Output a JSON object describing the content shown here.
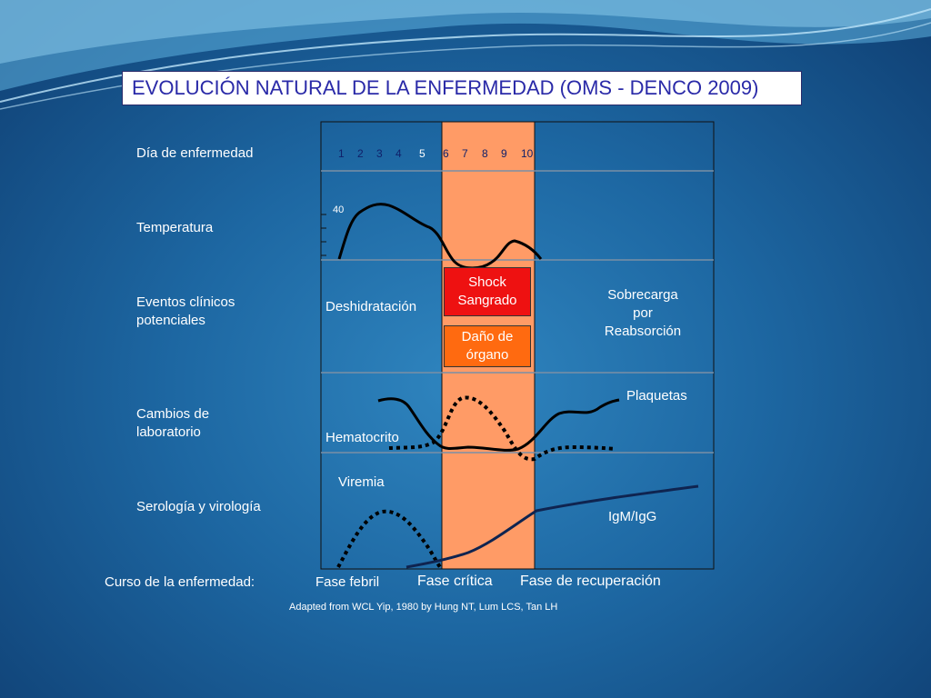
{
  "title": "EVOLUCIÓN NATURAL DE LA ENFERMEDAD (OMS - DENCO 2009)",
  "row_labels": {
    "day": "Día de enfermedad",
    "temperature": "Temperatura",
    "events_line1": "Eventos clínicos",
    "events_line2": "potenciales",
    "lab_line1": "Cambios  de",
    "lab_line2": "laboratorio",
    "serology": "Serología y virología"
  },
  "days": [
    "1",
    "2",
    "3",
    "4",
    "5",
    "6",
    "7",
    "8",
    "9",
    "10"
  ],
  "temperature_tick": "40",
  "events": {
    "febrile": "Deshidratación",
    "shock_line1": "Shock",
    "shock_line2": "Sangrado",
    "organ_line1": "Daño de",
    "organ_line2": "órgano",
    "recovery_line1": "Sobrecarga",
    "recovery_line2": "por",
    "recovery_line3": "Reabsorción"
  },
  "lab": {
    "platelets": "Plaquetas",
    "hematocrit": "Hematocrito"
  },
  "serology": {
    "viremia": "Viremia",
    "antibodies": "IgM/IgG"
  },
  "course": {
    "label": "Curso de la enfermedad:",
    "febrile": "Fase febril",
    "critical": "Fase crítica",
    "recovery": "Fase de recuperación"
  },
  "source": "Adapted from WCL Yip, 1980 by Hung NT, Lum LCS, Tan LH",
  "colors": {
    "critical_phase": "#ff9b66",
    "shock_box": "#ee1111",
    "organ_box": "#ff6a10",
    "title_text": "#2a2aa8"
  }
}
